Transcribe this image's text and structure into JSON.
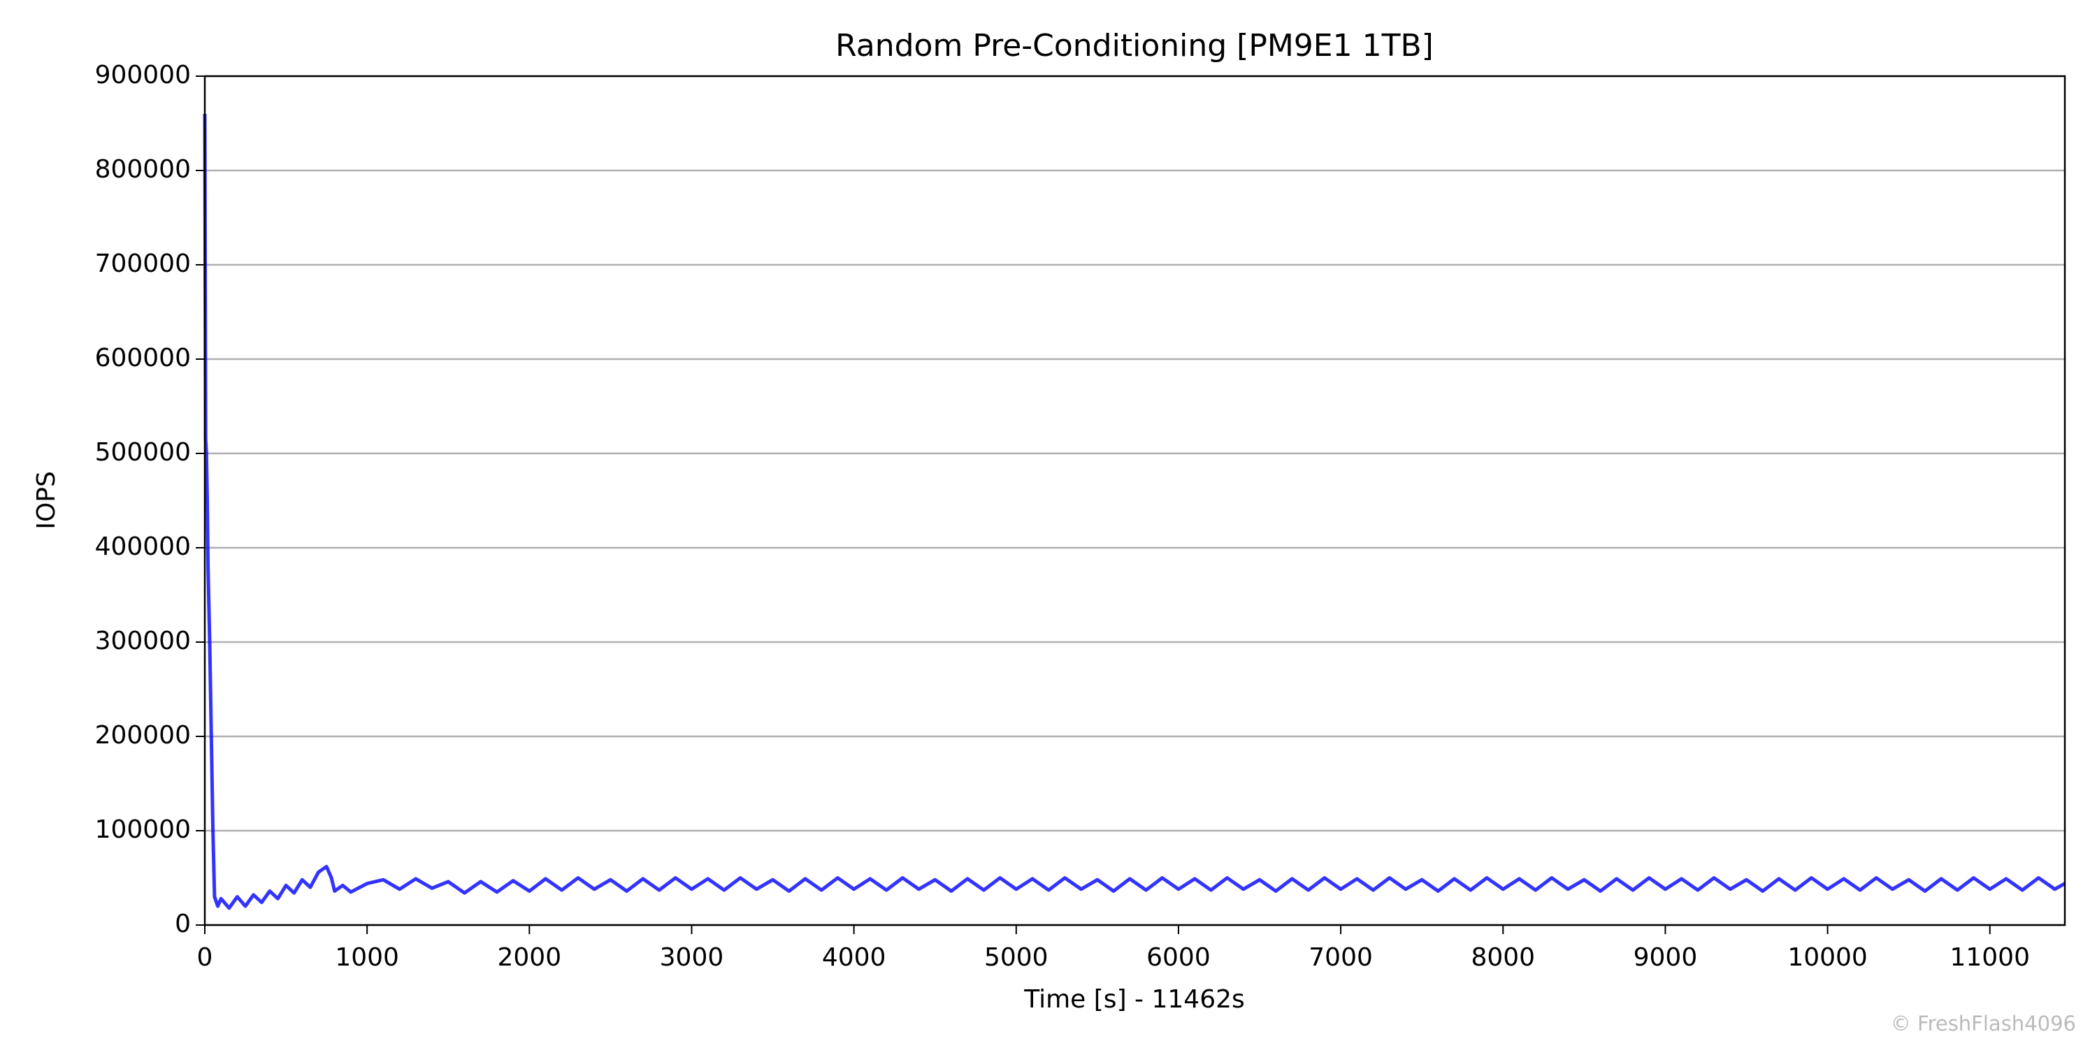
{
  "chart_data": {
    "type": "line",
    "title": "Random Pre-Conditioning [PM9E1 1TB]",
    "xlabel": "Time [s] - 11462s",
    "ylabel": "IOPS",
    "watermark": "© FreshFlash4096",
    "color": "#0000ff",
    "grid": true,
    "xlim": [
      0,
      11462
    ],
    "ylim": [
      0,
      900000
    ],
    "xticks": [
      0,
      1000,
      2000,
      3000,
      4000,
      5000,
      6000,
      7000,
      8000,
      9000,
      10000,
      11000
    ],
    "yticks": [
      0,
      100000,
      200000,
      300000,
      400000,
      500000,
      600000,
      700000,
      800000,
      900000
    ],
    "x": [
      0,
      5,
      10,
      15,
      20,
      30,
      40,
      50,
      60,
      80,
      100,
      150,
      200,
      250,
      300,
      350,
      400,
      450,
      500,
      550,
      600,
      650,
      700,
      750,
      780,
      800,
      850,
      900,
      1000,
      1100,
      1200,
      1300,
      1400,
      1500,
      1600,
      1700,
      1800,
      1900,
      2000,
      2100,
      2200,
      2300,
      2400,
      2500,
      2600,
      2700,
      2800,
      2900,
      3000,
      3100,
      3200,
      3300,
      3400,
      3500,
      3600,
      3700,
      3800,
      3900,
      4000,
      4100,
      4200,
      4300,
      4400,
      4500,
      4600,
      4700,
      4800,
      4900,
      5000,
      5100,
      5200,
      5300,
      5400,
      5500,
      5600,
      5700,
      5800,
      5900,
      6000,
      6100,
      6200,
      6300,
      6400,
      6500,
      6600,
      6700,
      6800,
      6900,
      7000,
      7100,
      7200,
      7300,
      7400,
      7500,
      7600,
      7700,
      7800,
      7900,
      8000,
      8100,
      8200,
      8300,
      8400,
      8500,
      8600,
      8700,
      8800,
      8900,
      9000,
      9100,
      9200,
      9300,
      9400,
      9500,
      9600,
      9700,
      9800,
      9900,
      10000,
      10100,
      10200,
      10300,
      10400,
      10500,
      10600,
      10700,
      10800,
      10900,
      11000,
      11100,
      11200,
      11300,
      11400,
      11462
    ],
    "values": [
      860000,
      515000,
      500000,
      450000,
      380000,
      300000,
      200000,
      100000,
      30000,
      20000,
      28000,
      18000,
      30000,
      20000,
      32000,
      24000,
      36000,
      28000,
      42000,
      34000,
      48000,
      40000,
      56000,
      62000,
      50000,
      36000,
      42000,
      35000,
      44000,
      48000,
      38000,
      49000,
      39000,
      46000,
      34000,
      46000,
      35000,
      47000,
      36000,
      49000,
      37000,
      50000,
      38000,
      48000,
      36000,
      49000,
      37000,
      50000,
      38000,
      49000,
      37000,
      50000,
      38000,
      48000,
      36000,
      49000,
      37000,
      50000,
      38000,
      49000,
      37000,
      50000,
      38000,
      48000,
      36000,
      49000,
      37000,
      50000,
      38000,
      49000,
      37000,
      50000,
      38000,
      48000,
      36000,
      49000,
      37000,
      50000,
      38000,
      49000,
      37000,
      50000,
      38000,
      48000,
      36000,
      49000,
      37000,
      50000,
      38000,
      49000,
      37000,
      50000,
      38000,
      48000,
      36000,
      49000,
      37000,
      50000,
      38000,
      49000,
      37000,
      50000,
      38000,
      48000,
      36000,
      49000,
      37000,
      50000,
      38000,
      49000,
      37000,
      50000,
      38000,
      48000,
      36000,
      49000,
      37000,
      50000,
      38000,
      49000,
      37000,
      50000,
      38000,
      48000,
      36000,
      49000,
      37000,
      50000,
      38000,
      49000,
      37000,
      50000,
      38000,
      44000
    ]
  }
}
